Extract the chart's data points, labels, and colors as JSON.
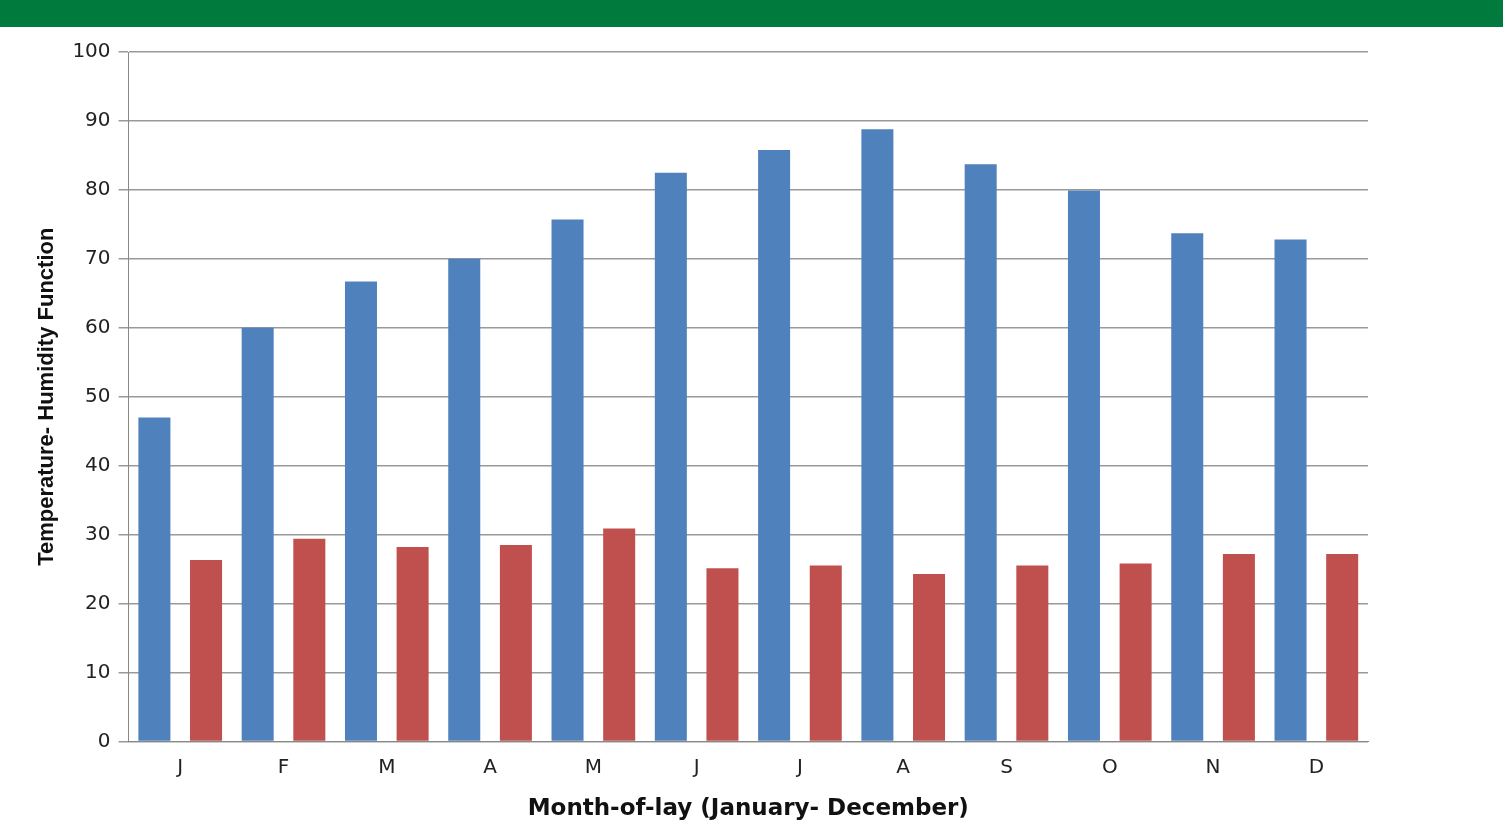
{
  "chart_data": {
    "type": "bar",
    "xlabel": "Month-of-lay (January- December)",
    "ylabel": "Temperature- Humidity Function",
    "categories": [
      "J",
      "F",
      "M",
      "A",
      "M",
      "J",
      "J",
      "A",
      "S",
      "O",
      "N",
      "D"
    ],
    "series": [
      {
        "color": "#4f81bd",
        "values": [
          47,
          60,
          66.7,
          70,
          75.7,
          82.5,
          85.8,
          88.8,
          83.7,
          79.9,
          73.7,
          72.8
        ]
      },
      {
        "color": "#c0504d",
        "values": [
          26.3,
          29.4,
          28.2,
          28.5,
          30.9,
          25.1,
          25.5,
          24.3,
          25.5,
          25.8,
          27.2,
          27.2
        ]
      }
    ],
    "ylim": [
      0,
      100
    ],
    "yticks": [
      0,
      10,
      20,
      30,
      40,
      50,
      60,
      70,
      80,
      90,
      100
    ],
    "grid": "y",
    "legend": false
  }
}
